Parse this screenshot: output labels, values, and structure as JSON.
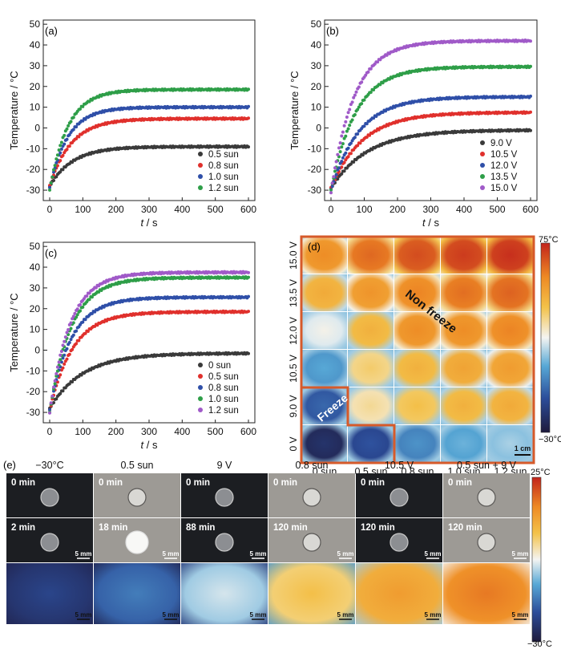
{
  "panels": {
    "a": "(a)",
    "b": "(b)",
    "c": "(c)",
    "d": "(d)",
    "e": "(e)"
  },
  "axes": {
    "ylabel": "Temperature / °C",
    "xlabel_italic": "t",
    "xlabel_unit": " / s",
    "yticks": [
      -30,
      -20,
      -10,
      0,
      10,
      20,
      30,
      40,
      50
    ],
    "xticks": [
      0,
      100,
      200,
      300,
      400,
      500,
      600
    ]
  },
  "colors": {
    "dark": "#3a3a3a",
    "red": "#e0302c",
    "blue": "#2f4fa8",
    "green": "#2e9e48",
    "purple": "#a05ac8",
    "frame": "#d65a2a"
  },
  "chart_data": [
    {
      "type": "scatter",
      "panel": "a",
      "x_range": [
        0,
        600
      ],
      "ylim": [
        -35,
        52
      ],
      "legend_position": "bottom-right",
      "series": [
        {
          "name": "0.5 sun",
          "color": "dark",
          "start": -28,
          "final": -9,
          "tau": 70
        },
        {
          "name": "0.8 sun",
          "color": "red",
          "start": -28,
          "final": 4.5,
          "tau": 65
        },
        {
          "name": "1.0 sun",
          "color": "blue",
          "start": -29,
          "final": 10,
          "tau": 55
        },
        {
          "name": "1.2 sun",
          "color": "green",
          "start": -30,
          "final": 18.5,
          "tau": 55
        }
      ]
    },
    {
      "type": "scatter",
      "panel": "b",
      "x_range": [
        0,
        600
      ],
      "ylim": [
        -35,
        52
      ],
      "legend_position": "bottom-right",
      "series": [
        {
          "name": "9.0 V",
          "color": "dark",
          "start": -29,
          "final": -1,
          "tau": 110
        },
        {
          "name": "10.5 V",
          "color": "red",
          "start": -29,
          "final": 7.5,
          "tau": 95
        },
        {
          "name": "12.0 V",
          "color": "blue",
          "start": -30,
          "final": 15,
          "tau": 85
        },
        {
          "name": "13.5 V",
          "color": "green",
          "start": -30,
          "final": 29.5,
          "tau": 75
        },
        {
          "name": "15.0 V",
          "color": "purple",
          "start": -31,
          "final": 42,
          "tau": 70
        }
      ]
    },
    {
      "type": "scatter",
      "panel": "c",
      "x_range": [
        0,
        600
      ],
      "ylim": [
        -35,
        52
      ],
      "legend_position": "bottom-right",
      "series": [
        {
          "name": "0 sun",
          "color": "dark",
          "start": -28,
          "final": -1.5,
          "tau": 100
        },
        {
          "name": "0.5 sun",
          "color": "red",
          "start": -29,
          "final": 18.5,
          "tau": 70
        },
        {
          "name": "0.8 sun",
          "color": "blue",
          "start": -29,
          "final": 25.5,
          "tau": 65
        },
        {
          "name": "1.0 sun",
          "color": "green",
          "start": -30,
          "final": 35,
          "tau": 65
        },
        {
          "name": "1.2 sun",
          "color": "purple",
          "start": -30,
          "final": 37.5,
          "tau": 62
        }
      ]
    }
  ],
  "heatmap": {
    "rows": [
      "15.0 V",
      "13.5 V",
      "12.0 V",
      "10.5 V",
      "9.0 V",
      "0 V"
    ],
    "cols": [
      "0 sun",
      "0.5 sun",
      "0.8 sun",
      "1.0 sun",
      "1.2 sun"
    ],
    "levels": [
      [
        0.78,
        0.85,
        0.9,
        0.93,
        0.95
      ],
      [
        0.7,
        0.76,
        0.8,
        0.84,
        0.86
      ],
      [
        0.48,
        0.68,
        0.78,
        0.78,
        0.8
      ],
      [
        0.32,
        0.6,
        0.68,
        0.72,
        0.74
      ],
      [
        0.2,
        0.56,
        0.64,
        0.68,
        0.7
      ],
      [
        0.06,
        0.16,
        0.28,
        0.34,
        0.4
      ]
    ],
    "non_freeze_label": "Non freeze",
    "freeze_label": "Freeze",
    "scale_bar": "1 cm",
    "colorbar_max": "75°C",
    "colorbar_min": "−30°C"
  },
  "panel_e": {
    "columns": [
      {
        "header": "−30°C",
        "top_time": "0 min",
        "mid_time": "2 min",
        "bg": "dark",
        "drop": "frost",
        "thermal": 0.1
      },
      {
        "header": "0.5 sun",
        "top_time": "0 min",
        "mid_time": "18 min",
        "bg": "light",
        "drop": "bright",
        "thermal": 0.22
      },
      {
        "header": "9 V",
        "top_time": "0 min",
        "mid_time": "88 min",
        "bg": "dark",
        "drop": "frost",
        "thermal": 0.42
      },
      {
        "header": "0.8 sun",
        "top_time": "0 min",
        "mid_time": "120 min",
        "bg": "light",
        "drop": "ice",
        "thermal": 0.62
      },
      {
        "header": "10.5 V",
        "top_time": "0 min",
        "mid_time": "120 min",
        "bg": "dark",
        "drop": "ice",
        "thermal": 0.72
      },
      {
        "header": "0.5 sun + 9 V",
        "top_time": "0 min",
        "mid_time": "120 min",
        "bg": "light",
        "drop": "ice",
        "thermal": 0.8
      }
    ],
    "scale_bar": "5 mm",
    "colorbar_max": "25°C",
    "colorbar_min": "−30°C"
  }
}
